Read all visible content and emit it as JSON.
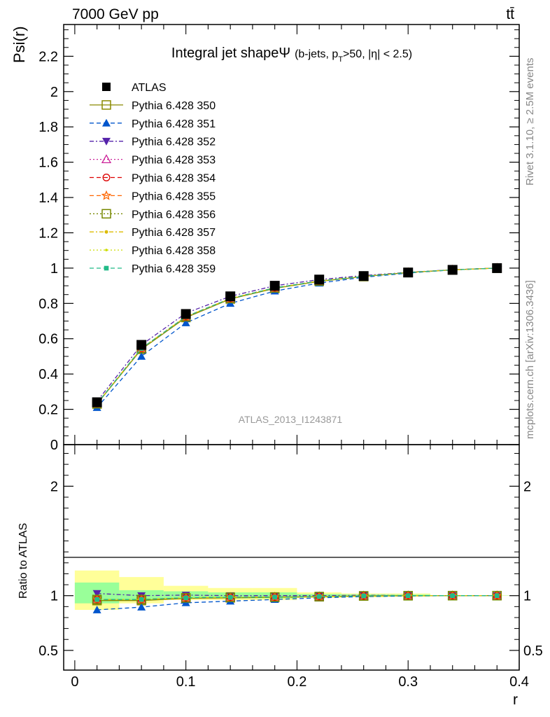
{
  "header": {
    "energy": "7000 GeV pp",
    "process": "tt̄"
  },
  "side_labels": {
    "rivet": "Rivet 3.1.10, ≥ 2.5M events",
    "mcplots": "mcplots.cern.ch [arXiv:1306.3436]"
  },
  "chart_data": [
    {
      "type": "line",
      "title": "Integral jet shapeΨ (b-jets, p_T>50, |η| < 2.5)",
      "title_main": "Integral jet shape",
      "title_psi": "Ψ",
      "title_sub_a": "(b-jets, p",
      "title_sub_t": "T",
      "title_sub_b": ">50, |η| < 2.5)",
      "ylabel": "Psi(r)",
      "xlabel": "",
      "watermark": "ATLAS_2013_I1243871",
      "xlim": [
        -0.01,
        0.4
      ],
      "ylim": [
        0,
        2.38
      ],
      "yticks": [
        0,
        0.2,
        0.4,
        0.6,
        0.8,
        1,
        1.2,
        1.4,
        1.6,
        1.8,
        2,
        2.2
      ],
      "ytick_labels": [
        "0",
        "0.2",
        "0.4",
        "0.6",
        "0.8",
        "1",
        "1.2",
        "1.4",
        "1.6",
        "1.8",
        "2",
        "2.2"
      ],
      "x": [
        0.02,
        0.06,
        0.1,
        0.14,
        0.18,
        0.22,
        0.26,
        0.3,
        0.34,
        0.38
      ],
      "series": [
        {
          "name": "ATLAS",
          "color": "#000000",
          "marker": "square-filled",
          "values": [
            0.24,
            0.565,
            0.74,
            0.84,
            0.9,
            0.935,
            0.955,
            0.975,
            0.99,
            1.0
          ]
        },
        {
          "name": "Pythia 6.428 350",
          "color": "#8a8a00",
          "marker": "square-open",
          "dash": "",
          "values": [
            0.23,
            0.54,
            0.72,
            0.825,
            0.885,
            0.925,
            0.952,
            0.975,
            0.99,
            1.0
          ]
        },
        {
          "name": "Pythia 6.428 351",
          "color": "#0055cc",
          "marker": "triangle-up-filled",
          "dash": "6,4",
          "values": [
            0.21,
            0.5,
            0.69,
            0.8,
            0.87,
            0.915,
            0.948,
            0.972,
            0.99,
            1.0
          ]
        },
        {
          "name": "Pythia 6.428 352",
          "color": "#5522aa",
          "marker": "triangle-down-filled",
          "dash": "6,3,2,3",
          "values": [
            0.245,
            0.565,
            0.745,
            0.84,
            0.9,
            0.935,
            0.958,
            0.976,
            0.991,
            1.0
          ]
        },
        {
          "name": "Pythia 6.428 353",
          "color": "#cc2299",
          "marker": "triangle-up-open",
          "dash": "2,3",
          "values": [
            0.232,
            0.545,
            0.725,
            0.828,
            0.888,
            0.927,
            0.953,
            0.975,
            0.99,
            1.0
          ]
        },
        {
          "name": "Pythia 6.428 354",
          "color": "#dd0000",
          "marker": "circle-open",
          "dash": "6,4",
          "values": [
            0.232,
            0.545,
            0.725,
            0.828,
            0.888,
            0.927,
            0.953,
            0.975,
            0.99,
            1.0
          ]
        },
        {
          "name": "Pythia 6.428 355",
          "color": "#ff6600",
          "marker": "star-open",
          "dash": "6,4",
          "values": [
            0.232,
            0.545,
            0.725,
            0.828,
            0.888,
            0.927,
            0.953,
            0.975,
            0.99,
            1.0
          ]
        },
        {
          "name": "Pythia 6.428 356",
          "color": "#778800",
          "marker": "square-open",
          "dash": "2,3",
          "values": [
            0.232,
            0.545,
            0.725,
            0.828,
            0.888,
            0.927,
            0.953,
            0.975,
            0.99,
            1.0
          ]
        },
        {
          "name": "Pythia 6.428 357",
          "color": "#ddbb00",
          "marker": "dot",
          "dash": "6,3,2,3",
          "values": [
            0.232,
            0.545,
            0.725,
            0.828,
            0.888,
            0.927,
            0.953,
            0.975,
            0.99,
            1.0
          ]
        },
        {
          "name": "Pythia 6.428 358",
          "color": "#ccdd00",
          "marker": "dot-small",
          "dash": "2,3",
          "values": [
            0.232,
            0.545,
            0.725,
            0.828,
            0.888,
            0.927,
            0.953,
            0.975,
            0.99,
            1.0
          ]
        },
        {
          "name": "Pythia 6.428 359",
          "color": "#22bb88",
          "marker": "square-small-filled",
          "dash": "6,4",
          "values": [
            0.232,
            0.545,
            0.725,
            0.828,
            0.888,
            0.927,
            0.953,
            0.975,
            0.99,
            1.0
          ]
        }
      ]
    },
    {
      "type": "line",
      "title": "",
      "ylabel": "Ratio to ATLAS",
      "xlabel": "r",
      "xlim": [
        -0.01,
        0.4
      ],
      "ylim": [
        0.32,
        2.38
      ],
      "yticks": [
        0.5,
        1,
        2
      ],
      "ytick_labels": [
        "0.5",
        "1",
        "2"
      ],
      "xticks": [
        0,
        0.1,
        0.2,
        0.3,
        0.4
      ],
      "xtick_labels": [
        "0",
        "0.1",
        "0.2",
        "0.3",
        "0.4"
      ],
      "x": [
        0.02,
        0.06,
        0.1,
        0.14,
        0.18,
        0.22,
        0.26,
        0.3,
        0.34,
        0.38
      ],
      "bands": {
        "edges": [
          0.0,
          0.04,
          0.08,
          0.12,
          0.16,
          0.2,
          0.24,
          0.28,
          0.32,
          0.36,
          0.4
        ],
        "outer_lo": [
          0.87,
          0.93,
          0.96,
          0.96,
          0.96,
          0.98,
          0.985,
          0.99,
          0.995,
          0.998
        ],
        "outer_hi": [
          1.23,
          1.17,
          1.09,
          1.07,
          1.07,
          1.03,
          1.02,
          1.02,
          1.005,
          1.002
        ],
        "inner_lo": [
          0.93,
          0.96,
          0.975,
          0.975,
          0.975,
          0.99,
          0.993,
          0.995,
          0.998,
          0.999
        ],
        "inner_hi": [
          1.12,
          1.05,
          1.04,
          1.03,
          1.03,
          1.015,
          1.012,
          1.01,
          1.003,
          1.001
        ],
        "outer_color": "#ffff99",
        "inner_color": "#99ff99"
      },
      "series": [
        {
          "name": "Pythia 6.428 350",
          "values": [
            0.955,
            0.955,
            0.975,
            0.98,
            0.985,
            0.99,
            0.997,
            0.999,
            1.0,
            1.0
          ]
        },
        {
          "name": "Pythia 6.428 351",
          "values": [
            0.87,
            0.895,
            0.935,
            0.95,
            0.965,
            0.98,
            0.992,
            0.997,
            1.0,
            1.0
          ]
        },
        {
          "name": "Pythia 6.428 352",
          "values": [
            1.02,
            1.0,
            1.005,
            1.0,
            1.0,
            1.0,
            1.003,
            1.001,
            1.001,
            1.0
          ]
        },
        {
          "name": "Pythia 6.428 353",
          "values": [
            0.965,
            0.965,
            0.98,
            0.985,
            0.987,
            0.992,
            0.998,
            1.0,
            1.0,
            1.0
          ]
        },
        {
          "name": "Pythia 6.428 354",
          "values": [
            0.965,
            0.965,
            0.98,
            0.985,
            0.987,
            0.992,
            0.998,
            1.0,
            1.0,
            1.0
          ]
        },
        {
          "name": "Pythia 6.428 355",
          "values": [
            0.965,
            0.965,
            0.98,
            0.985,
            0.987,
            0.992,
            0.998,
            1.0,
            1.0,
            1.0
          ]
        },
        {
          "name": "Pythia 6.428 356",
          "values": [
            0.965,
            0.965,
            0.98,
            0.985,
            0.987,
            0.992,
            0.998,
            1.0,
            1.0,
            1.0
          ]
        },
        {
          "name": "Pythia 6.428 357",
          "values": [
            0.965,
            0.965,
            0.98,
            0.985,
            0.987,
            0.992,
            0.998,
            1.0,
            1.0,
            1.0
          ]
        },
        {
          "name": "Pythia 6.428 358",
          "values": [
            0.965,
            0.965,
            0.98,
            0.985,
            0.987,
            0.992,
            0.998,
            1.0,
            1.0,
            1.0
          ]
        },
        {
          "name": "Pythia 6.428 359",
          "values": [
            0.965,
            0.965,
            0.98,
            0.985,
            0.987,
            0.992,
            0.998,
            1.0,
            1.0,
            1.0
          ]
        }
      ]
    }
  ]
}
